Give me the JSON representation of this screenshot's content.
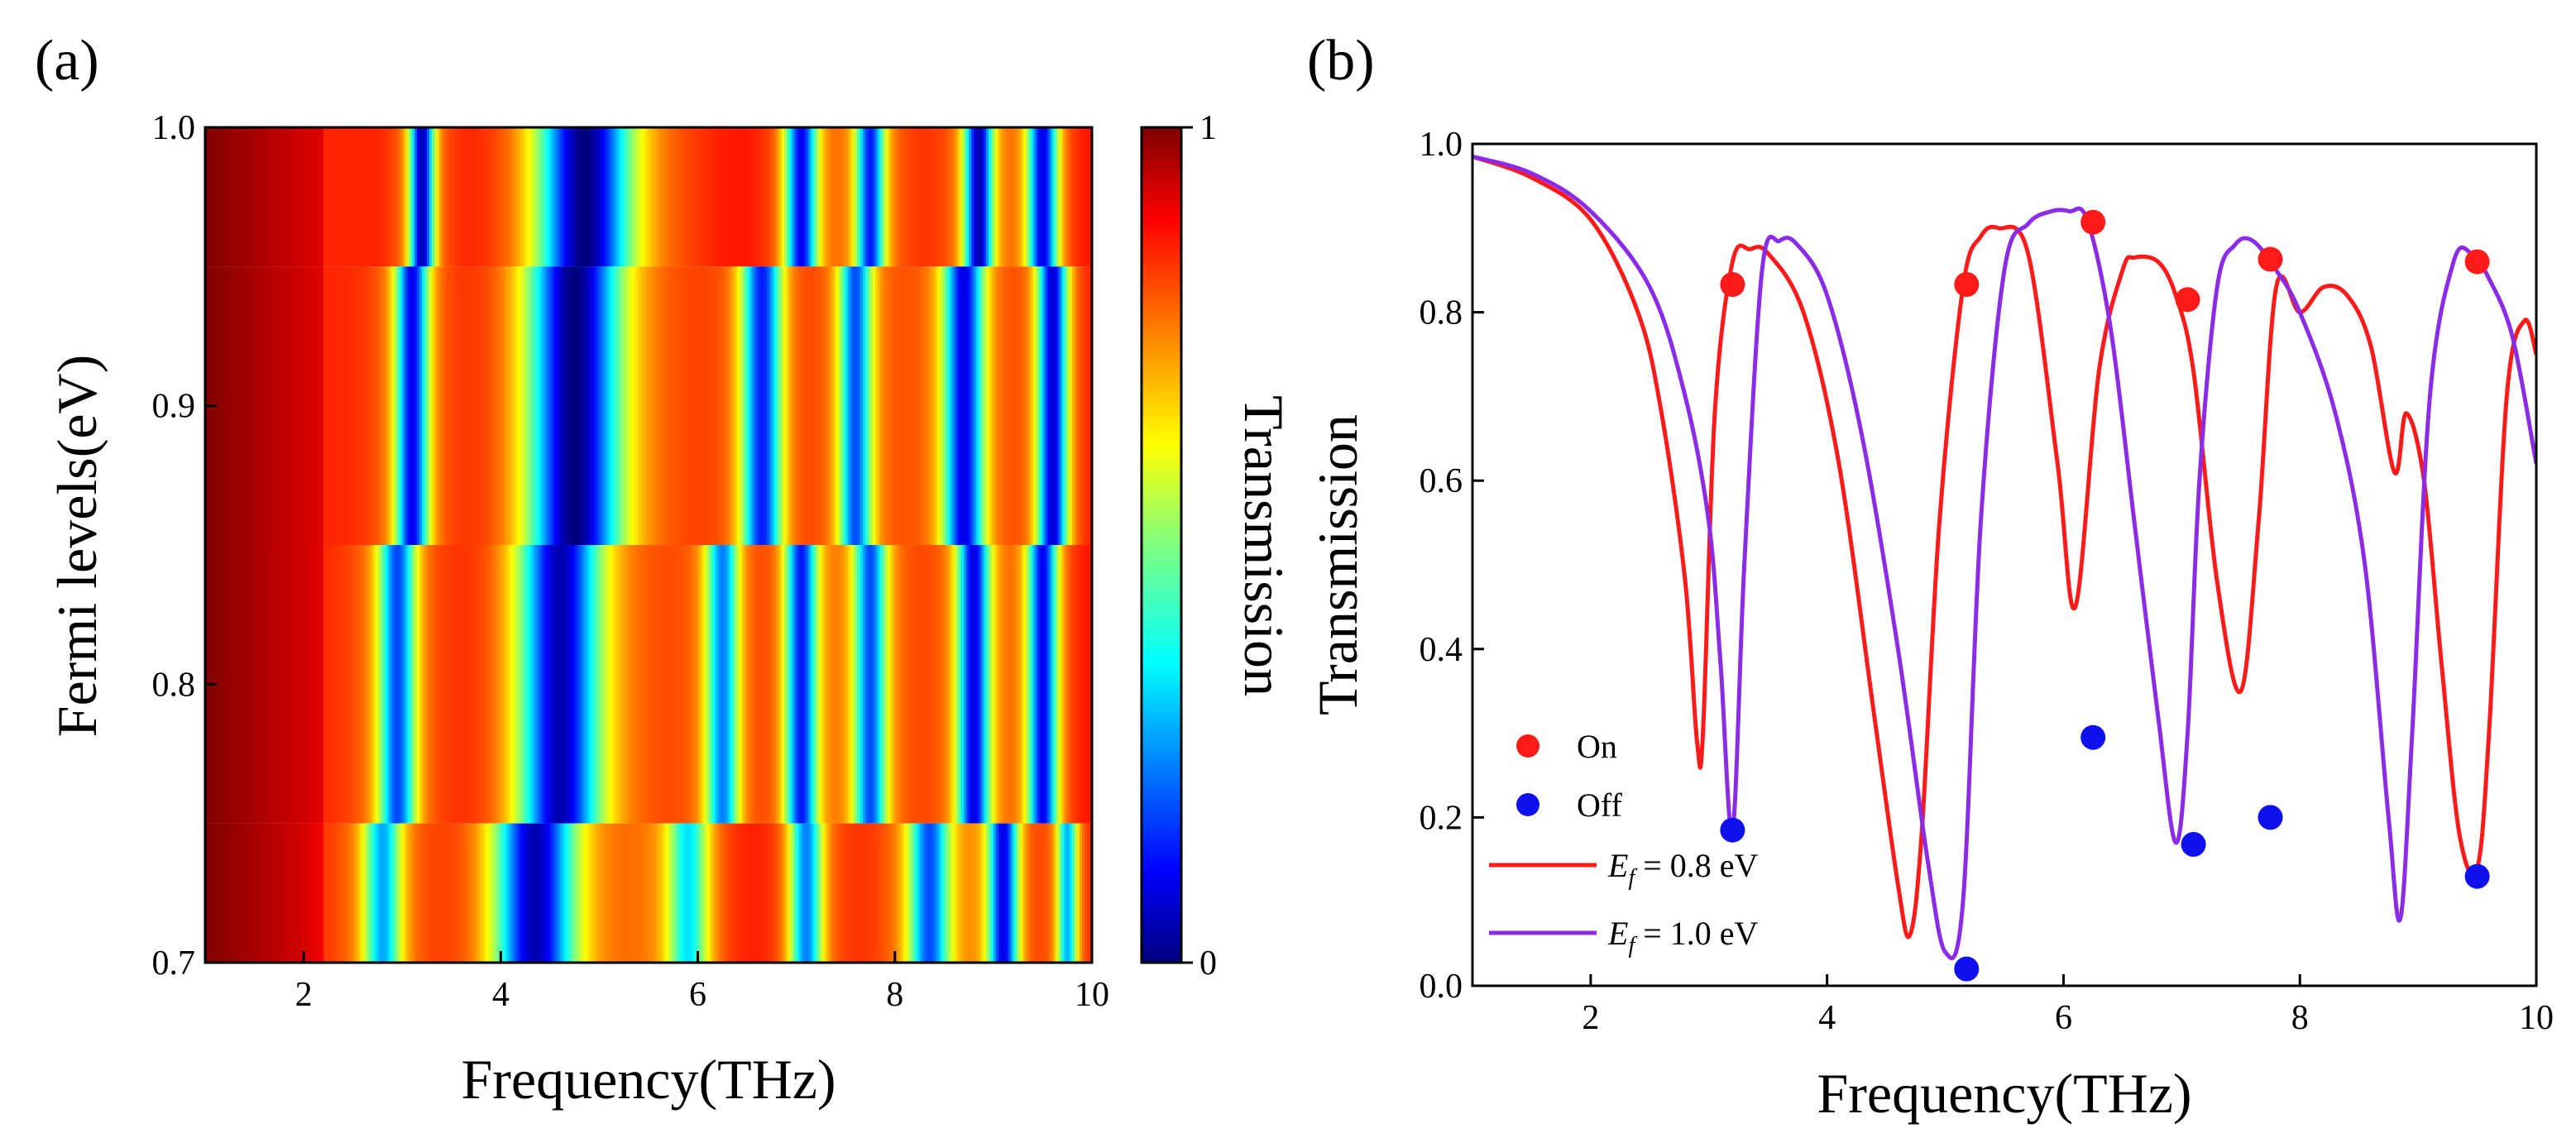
{
  "chart_data": [
    {
      "type": "heatmap",
      "panel_label": "(a)",
      "xlabel": "Frequency(THz)",
      "ylabel": "Fermi levels(eV)",
      "colorbar_label": "Transmission",
      "xlim": [
        1,
        10
      ],
      "ylim": [
        0.7,
        1.0
      ],
      "xticks": [
        2,
        4,
        6,
        8,
        10
      ],
      "yticks": [
        0.7,
        0.8,
        0.9,
        1.0
      ],
      "ytick_labels": [
        "0.7",
        "0.8",
        "0.9",
        "1.0"
      ],
      "colorbar_ticks": [
        0,
        1
      ],
      "colorbar_range": [
        0,
        1
      ],
      "colorscale": "jet",
      "rows": [
        {
          "ef_from": 0.95,
          "ef_to": 1.0,
          "dips": [
            [
              3.2,
              0.12,
              0.06
            ],
            [
              4.85,
              0.45,
              0.0
            ],
            [
              7.05,
              0.16,
              0.12
            ],
            [
              7.75,
              0.14,
              0.15
            ],
            [
              8.85,
              0.14,
              0.05
            ],
            [
              9.5,
              0.15,
              0.1
            ]
          ]
        },
        {
          "ef_from": 0.85,
          "ef_to": 0.95,
          "dips": [
            [
              3.1,
              0.16,
              0.12
            ],
            [
              4.75,
              0.45,
              0.0
            ],
            [
              6.65,
              0.2,
              0.15
            ],
            [
              7.6,
              0.16,
              0.2
            ],
            [
              8.7,
              0.2,
              0.1
            ],
            [
              9.6,
              0.15,
              0.08
            ]
          ]
        },
        {
          "ef_from": 0.75,
          "ef_to": 0.85,
          "dips": [
            [
              2.95,
              0.18,
              0.2
            ],
            [
              4.6,
              0.4,
              0.05
            ],
            [
              6.25,
              0.16,
              0.25
            ],
            [
              7.05,
              0.16,
              0.15
            ],
            [
              7.75,
              0.16,
              0.2
            ],
            [
              8.8,
              0.16,
              0.1
            ],
            [
              9.5,
              0.15,
              0.12
            ]
          ]
        },
        {
          "ef_from": 0.7,
          "ef_to": 0.75,
          "dips": [
            [
              2.8,
              0.18,
              0.3
            ],
            [
              4.35,
              0.4,
              0.05
            ],
            [
              5.9,
              0.2,
              0.35
            ],
            [
              7.1,
              0.16,
              0.25
            ],
            [
              8.35,
              0.2,
              0.2
            ],
            [
              9.1,
              0.15,
              0.1
            ],
            [
              9.75,
              0.1,
              0.3
            ]
          ]
        }
      ]
    },
    {
      "type": "line",
      "panel_label": "(b)",
      "xlabel": "Frequency(THz)",
      "ylabel": "Transmission",
      "xlim": [
        1,
        10
      ],
      "ylim": [
        0.0,
        1.0
      ],
      "xticks": [
        2,
        4,
        6,
        8,
        10
      ],
      "yticks": [
        0.0,
        0.2,
        0.4,
        0.6,
        0.8,
        1.0
      ],
      "ytick_labels": [
        "0.0",
        "0.2",
        "0.4",
        "0.6",
        "0.8",
        "1.0"
      ],
      "series": [
        {
          "name_italic": "E",
          "name_sub": "f",
          "name_rest": " = 0.8 eV",
          "color": "#ff1a1a",
          "x": [
            1.0,
            1.5,
            2.0,
            2.4,
            2.6,
            2.8,
            2.9,
            2.95,
            3.05,
            3.2,
            3.35,
            3.5,
            3.8,
            4.1,
            4.4,
            4.6,
            4.7,
            4.8,
            4.95,
            5.15,
            5.3,
            5.45,
            5.7,
            5.95,
            6.1,
            6.3,
            6.5,
            6.6,
            6.8,
            6.95,
            7.1,
            7.3,
            7.5,
            7.65,
            7.8,
            8.0,
            8.2,
            8.4,
            8.6,
            8.8,
            8.9,
            9.05,
            9.2,
            9.35,
            9.5,
            9.6,
            9.75,
            9.9,
            10.0
          ],
          "y": [
            0.985,
            0.96,
            0.91,
            0.8,
            0.68,
            0.48,
            0.29,
            0.3,
            0.68,
            0.86,
            0.875,
            0.87,
            0.8,
            0.62,
            0.32,
            0.12,
            0.06,
            0.18,
            0.55,
            0.83,
            0.89,
            0.9,
            0.87,
            0.62,
            0.45,
            0.73,
            0.85,
            0.865,
            0.86,
            0.82,
            0.73,
            0.48,
            0.35,
            0.55,
            0.83,
            0.8,
            0.83,
            0.82,
            0.76,
            0.61,
            0.68,
            0.6,
            0.38,
            0.18,
            0.14,
            0.3,
            0.7,
            0.79,
            0.75
          ]
        },
        {
          "name_italic": "E",
          "name_sub": "f",
          "name_rest": " = 1.0 eV",
          "color": "#8b2be8",
          "x": [
            1.0,
            1.5,
            2.0,
            2.5,
            2.8,
            3.0,
            3.1,
            3.2,
            3.3,
            3.45,
            3.6,
            3.75,
            4.0,
            4.3,
            4.6,
            4.85,
            5.0,
            5.15,
            5.3,
            5.5,
            5.7,
            5.9,
            6.05,
            6.2,
            6.4,
            6.6,
            6.8,
            6.95,
            7.05,
            7.15,
            7.3,
            7.45,
            7.6,
            7.8,
            8.0,
            8.3,
            8.55,
            8.75,
            8.85,
            8.95,
            9.1,
            9.3,
            9.45,
            9.6,
            9.8,
            10.0
          ],
          "y": [
            0.985,
            0.965,
            0.92,
            0.83,
            0.7,
            0.55,
            0.38,
            0.185,
            0.5,
            0.85,
            0.885,
            0.88,
            0.82,
            0.65,
            0.4,
            0.15,
            0.04,
            0.1,
            0.55,
            0.85,
            0.905,
            0.92,
            0.92,
            0.91,
            0.78,
            0.55,
            0.32,
            0.17,
            0.3,
            0.6,
            0.83,
            0.88,
            0.885,
            0.85,
            0.8,
            0.68,
            0.5,
            0.2,
            0.08,
            0.3,
            0.7,
            0.86,
            0.87,
            0.84,
            0.77,
            0.62
          ]
        }
      ],
      "markers": [
        {
          "name": "On",
          "color": "#ff1a1a",
          "points": [
            [
              3.2,
              0.833
            ],
            [
              5.18,
              0.833
            ],
            [
              6.25,
              0.907
            ],
            [
              7.05,
              0.815
            ],
            [
              7.75,
              0.863
            ],
            [
              9.5,
              0.86
            ]
          ]
        },
        {
          "name": "Off",
          "color": "#1010ee",
          "points": [
            [
              3.2,
              0.185
            ],
            [
              5.18,
              0.02
            ],
            [
              6.25,
              0.295
            ],
            [
              7.1,
              0.168
            ],
            [
              7.75,
              0.2
            ],
            [
              9.5,
              0.13
            ]
          ]
        }
      ]
    }
  ]
}
